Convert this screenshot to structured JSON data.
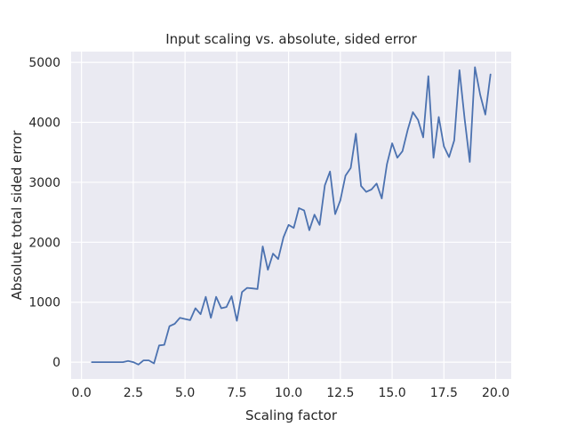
{
  "chart_data": {
    "type": "line",
    "title": "Input scaling vs. absolute, sided error",
    "xlabel": "Scaling factor",
    "ylabel": "Absolute total sided error",
    "xlim": [
      -0.5,
      20.75
    ],
    "ylim": [
      -280,
      5180
    ],
    "xticks": [
      0.0,
      2.5,
      5.0,
      7.5,
      10.0,
      12.5,
      15.0,
      17.5,
      20.0
    ],
    "xtick_labels": [
      "0.0",
      "2.5",
      "5.0",
      "7.5",
      "10.0",
      "12.5",
      "15.0",
      "17.5",
      "20.0"
    ],
    "yticks": [
      0,
      1000,
      2000,
      3000,
      4000,
      5000
    ],
    "ytick_labels": [
      "0",
      "1000",
      "2000",
      "3000",
      "4000",
      "5000"
    ],
    "grid": true,
    "background_color": "#eaeaf2",
    "grid_color": "#ffffff",
    "series": [
      {
        "color": "#4c72b0",
        "x": [
          0.5,
          0.75,
          1.0,
          1.25,
          1.5,
          1.75,
          2.0,
          2.25,
          2.5,
          2.75,
          3.0,
          3.25,
          3.5,
          3.75,
          4.0,
          4.25,
          4.5,
          4.75,
          5.0,
          5.25,
          5.5,
          5.75,
          6.0,
          6.25,
          6.5,
          6.75,
          7.0,
          7.25,
          7.5,
          7.75,
          8.0,
          8.25,
          8.5,
          8.75,
          9.0,
          9.25,
          9.5,
          9.75,
          10.0,
          10.25,
          10.5,
          10.75,
          11.0,
          11.25,
          11.5,
          11.75,
          12.0,
          12.25,
          12.5,
          12.75,
          13.0,
          13.25,
          13.5,
          13.75,
          14.0,
          14.25,
          14.5,
          14.75,
          15.0,
          15.25,
          15.5,
          15.75,
          16.0,
          16.25,
          16.5,
          16.75,
          17.0,
          17.25,
          17.5,
          17.75,
          18.0,
          18.25,
          18.5,
          18.75,
          19.0,
          19.25,
          19.5,
          19.75
        ],
        "y": [
          0,
          0,
          0,
          0,
          0,
          0,
          0,
          20,
          0,
          -40,
          30,
          30,
          -20,
          280,
          290,
          600,
          640,
          740,
          720,
          700,
          900,
          800,
          1090,
          740,
          1090,
          900,
          920,
          1100,
          690,
          1170,
          1240,
          1230,
          1220,
          1930,
          1540,
          1810,
          1720,
          2080,
          2290,
          2240,
          2570,
          2530,
          2200,
          2460,
          2290,
          2950,
          3180,
          2470,
          2700,
          3110,
          3240,
          3810,
          2940,
          2840,
          2880,
          2980,
          2730,
          3300,
          3650,
          3410,
          3520,
          3870,
          4170,
          4040,
          3750,
          4770,
          3410,
          4090,
          3600,
          3420,
          3700,
          4870,
          4060,
          3340,
          4920,
          4460,
          4130,
          4800
        ]
      }
    ]
  }
}
